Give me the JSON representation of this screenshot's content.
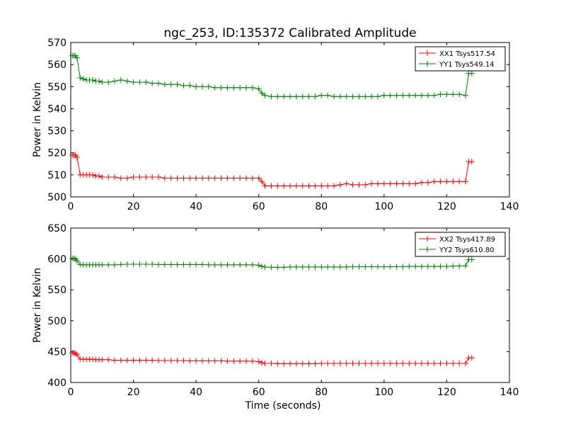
{
  "title": "ngc_253, ID:135372 Calibrated Amplitude",
  "chart_data": [
    {
      "type": "line",
      "title": "ngc_253, ID:135372 Calibrated Amplitude",
      "xlabel": "",
      "ylabel": "Power in Kelvin",
      "xlim": [
        0,
        140
      ],
      "ylim": [
        500,
        570
      ],
      "xticks": [
        0,
        20,
        40,
        60,
        80,
        100,
        120,
        140
      ],
      "yticks": [
        500,
        510,
        520,
        530,
        540,
        550,
        560,
        570
      ],
      "grid": false,
      "legend_position": "top-right",
      "series": [
        {
          "name": "XX1 Tsys517.54",
          "color": "#ff0000",
          "marker": "plus",
          "x": [
            0.5,
            1,
            1.5,
            2,
            3,
            4,
            5,
            6,
            7,
            8,
            9,
            10,
            12,
            14,
            16,
            18,
            20,
            22,
            24,
            26,
            28,
            30,
            32,
            34,
            36,
            38,
            40,
            42,
            44,
            46,
            48,
            50,
            52,
            54,
            56,
            58,
            60,
            61,
            62,
            64,
            66,
            68,
            70,
            72,
            74,
            76,
            78,
            80,
            82,
            84,
            86,
            88,
            90,
            92,
            94,
            96,
            98,
            100,
            102,
            104,
            106,
            108,
            110,
            112,
            114,
            116,
            118,
            120,
            122,
            124,
            126,
            127,
            128
          ],
          "y": [
            519,
            519,
            519,
            518,
            510,
            510,
            510,
            510,
            510,
            509.5,
            509.5,
            509,
            509,
            509,
            508.5,
            508.5,
            509,
            509,
            509,
            509,
            509,
            508.5,
            508.5,
            508.5,
            508.5,
            508.5,
            508.5,
            508.5,
            508.5,
            508.5,
            508.5,
            508.5,
            508.5,
            508.5,
            508.5,
            508.5,
            508.5,
            507,
            505,
            505,
            505,
            505,
            505,
            505,
            505,
            505,
            505,
            505,
            505,
            505,
            505.5,
            506,
            505.5,
            505.5,
            505.5,
            506,
            506,
            506,
            506,
            506,
            506,
            506,
            506,
            506.5,
            506.5,
            507,
            507,
            507,
            507,
            507,
            507,
            516,
            516
          ]
        },
        {
          "name": "YY1 Tsys549.14",
          "color": "#008000",
          "marker": "plus",
          "x": [
            0.5,
            1,
            1.5,
            2,
            3,
            4,
            5,
            6,
            7,
            8,
            9,
            10,
            12,
            14,
            16,
            18,
            20,
            22,
            24,
            26,
            28,
            30,
            32,
            34,
            36,
            38,
            40,
            42,
            44,
            46,
            48,
            50,
            52,
            54,
            56,
            58,
            60,
            61,
            62,
            64,
            66,
            68,
            70,
            72,
            74,
            76,
            78,
            80,
            82,
            84,
            86,
            88,
            90,
            92,
            94,
            96,
            98,
            100,
            102,
            104,
            106,
            108,
            110,
            112,
            114,
            116,
            118,
            120,
            122,
            124,
            126,
            127,
            128
          ],
          "y": [
            564,
            564,
            564,
            563,
            554,
            553.5,
            553,
            553,
            553,
            552.5,
            552.5,
            552,
            552,
            552.5,
            553,
            552.5,
            552,
            552,
            552,
            551.5,
            551.5,
            551,
            551,
            551,
            550.5,
            550.5,
            550,
            550,
            550,
            549.5,
            549.5,
            549.5,
            549.5,
            549.5,
            549.5,
            549.5,
            549,
            547,
            546,
            545.5,
            545.5,
            545.5,
            545.5,
            545.5,
            545.5,
            545.5,
            545.5,
            546,
            546,
            545.5,
            545.5,
            545.5,
            545.5,
            545.5,
            545.5,
            545.5,
            545.5,
            546,
            546,
            546,
            546,
            546,
            546,
            546,
            546,
            546,
            546.5,
            546.5,
            546.5,
            546.5,
            546,
            556,
            556
          ]
        }
      ]
    },
    {
      "type": "line",
      "title": "",
      "xlabel": "Time (seconds)",
      "ylabel": "Power in Kelvin",
      "xlim": [
        0,
        140
      ],
      "ylim": [
        400,
        650
      ],
      "xticks": [
        0,
        20,
        40,
        60,
        80,
        100,
        120,
        140
      ],
      "yticks": [
        400,
        450,
        500,
        550,
        600,
        650
      ],
      "grid": false,
      "legend_position": "top-right",
      "series": [
        {
          "name": "XX2 Tsys417.89",
          "color": "#ff0000",
          "marker": "plus",
          "x": [
            0.5,
            1,
            1.5,
            2,
            3,
            4,
            5,
            6,
            7,
            8,
            9,
            10,
            12,
            14,
            16,
            18,
            20,
            22,
            24,
            26,
            28,
            30,
            32,
            34,
            36,
            38,
            40,
            42,
            44,
            46,
            48,
            50,
            52,
            54,
            56,
            58,
            60,
            61,
            62,
            64,
            66,
            68,
            70,
            72,
            74,
            76,
            78,
            80,
            82,
            84,
            86,
            88,
            90,
            92,
            94,
            96,
            98,
            100,
            102,
            104,
            106,
            108,
            110,
            112,
            114,
            116,
            118,
            120,
            122,
            124,
            126,
            127,
            128
          ],
          "y": [
            448,
            448,
            447,
            445,
            438,
            437.5,
            437.5,
            437.5,
            437.5,
            437,
            437,
            437,
            437,
            436,
            436,
            436,
            436,
            436,
            436,
            436,
            435.5,
            435.5,
            435.5,
            435.5,
            435.5,
            435,
            435,
            435,
            435,
            435,
            435,
            434.5,
            434.5,
            434.5,
            434.5,
            434.5,
            434,
            432,
            431,
            431,
            430.5,
            430.5,
            430.5,
            430.5,
            430.5,
            430.5,
            430.5,
            431,
            431,
            431,
            431,
            431,
            431,
            431,
            431,
            431,
            431,
            431,
            431,
            431,
            431,
            431,
            431,
            431,
            431,
            431,
            431,
            431,
            431,
            431,
            431,
            440,
            440
          ]
        },
        {
          "name": "YY2 Tsys610.80",
          "color": "#008000",
          "marker": "plus",
          "x": [
            0.5,
            1,
            1.5,
            2,
            3,
            4,
            5,
            6,
            7,
            8,
            9,
            10,
            12,
            14,
            16,
            18,
            20,
            22,
            24,
            26,
            28,
            30,
            32,
            34,
            36,
            38,
            40,
            42,
            44,
            46,
            48,
            50,
            52,
            54,
            56,
            58,
            60,
            61,
            62,
            64,
            66,
            68,
            70,
            72,
            74,
            76,
            78,
            80,
            82,
            84,
            86,
            88,
            90,
            92,
            94,
            96,
            98,
            100,
            102,
            104,
            106,
            108,
            110,
            112,
            114,
            116,
            118,
            120,
            122,
            124,
            126,
            127,
            128
          ],
          "y": [
            601,
            601,
            600,
            597,
            591,
            590.5,
            590.5,
            590.5,
            590.5,
            590.5,
            590.5,
            590.5,
            590.5,
            590.5,
            591,
            591.5,
            591.5,
            591.5,
            591.5,
            591.5,
            591,
            591,
            591,
            591,
            591,
            591,
            591,
            591,
            590.5,
            590.5,
            590.5,
            590.5,
            590.5,
            590.5,
            590.5,
            590.5,
            590,
            588,
            587,
            586.5,
            586.5,
            586.5,
            587,
            587,
            587,
            587,
            587,
            587,
            587,
            587,
            587,
            587,
            587.5,
            587.5,
            587.5,
            587.5,
            587.5,
            587.5,
            587.5,
            587.5,
            587.5,
            588,
            588,
            588,
            588,
            588,
            588,
            588,
            588.5,
            588.5,
            589,
            599,
            599
          ]
        }
      ]
    }
  ]
}
